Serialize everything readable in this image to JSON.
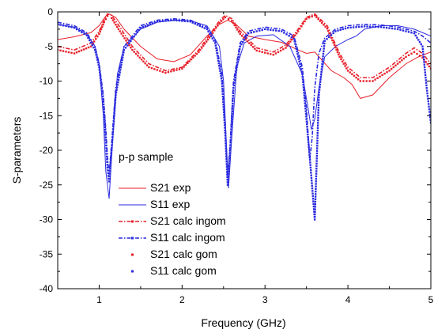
{
  "chart_data": {
    "type": "line",
    "title": "",
    "annotation": "p-p sample",
    "xlabel": "Frequency (GHz)",
    "ylabel": "S-parameters",
    "xlim": [
      0.5,
      5
    ],
    "ylim": [
      -40,
      0
    ],
    "x_ticks": [
      1,
      2,
      3,
      4,
      5
    ],
    "y_ticks": [
      0,
      -5,
      -10,
      -15,
      -20,
      -25,
      -30,
      -35,
      -40
    ],
    "grid": false,
    "legend_position": "center-left",
    "series": [
      {
        "name": "S21 exp",
        "color": "#e8202a",
        "style": "line",
        "x": [
          0.5,
          0.7,
          0.9,
          1.0,
          1.08,
          1.12,
          1.2,
          1.3,
          1.5,
          1.7,
          1.9,
          2.1,
          2.3,
          2.45,
          2.55,
          2.65,
          2.8,
          3.0,
          3.2,
          3.4,
          3.5,
          3.6,
          3.8,
          3.95,
          4.05,
          4.15,
          4.3,
          4.5,
          4.7,
          4.85,
          5.0
        ],
        "y": [
          -4.0,
          -3.6,
          -3.0,
          -2.0,
          -0.6,
          -0.3,
          -0.8,
          -2.5,
          -5.0,
          -6.8,
          -7.2,
          -6.2,
          -3.5,
          -1.8,
          -1.2,
          -1.8,
          -3.5,
          -4.0,
          -4.4,
          -5.5,
          -6.0,
          -5.8,
          -8.5,
          -9.5,
          -10.5,
          -12.5,
          -12.0,
          -9.5,
          -7.5,
          -6.5,
          -5.8
        ]
      },
      {
        "name": "S11 exp",
        "color": "#2a2ae0",
        "style": "line",
        "x": [
          0.5,
          0.7,
          0.85,
          0.95,
          1.0,
          1.05,
          1.08,
          1.12,
          1.16,
          1.22,
          1.3,
          1.5,
          1.7,
          1.9,
          2.1,
          2.3,
          2.45,
          2.5,
          2.53,
          2.56,
          2.6,
          2.66,
          2.75,
          2.9,
          3.1,
          3.3,
          3.45,
          3.52,
          3.56,
          3.6,
          3.65,
          3.72,
          3.85,
          4.0,
          4.1,
          4.2,
          4.4,
          4.6,
          4.8,
          5.0
        ],
        "y": [
          -1.8,
          -2.2,
          -3.2,
          -5.0,
          -7.5,
          -15.0,
          -23.0,
          -27.0,
          -19.0,
          -9.0,
          -5.0,
          -2.5,
          -1.5,
          -1.2,
          -1.3,
          -2.0,
          -5.0,
          -10.0,
          -18.0,
          -25.5,
          -18.0,
          -8.0,
          -4.5,
          -3.5,
          -3.3,
          -5.0,
          -9.0,
          -14.0,
          -17.0,
          -15.5,
          -11.0,
          -6.5,
          -5.0,
          -4.0,
          -3.5,
          -2.5,
          -2.0,
          -2.0,
          -2.5,
          -3.5
        ]
      },
      {
        "name": "S21 calc ingom",
        "color": "#e8202a",
        "style": "dash-dot",
        "x": [
          0.5,
          0.7,
          0.9,
          1.0,
          1.06,
          1.1,
          1.15,
          1.25,
          1.4,
          1.6,
          1.8,
          2.0,
          2.2,
          2.35,
          2.45,
          2.52,
          2.6,
          2.7,
          2.9,
          3.1,
          3.25,
          3.4,
          3.5,
          3.6,
          3.75,
          3.9,
          4.0,
          4.15,
          4.3,
          4.5,
          4.7,
          4.8,
          4.9,
          5.0
        ],
        "y": [
          -5.0,
          -5.5,
          -4.5,
          -2.8,
          -1.2,
          -0.3,
          -0.5,
          -2.2,
          -5.0,
          -7.5,
          -8.5,
          -8.0,
          -5.5,
          -3.0,
          -1.3,
          -0.5,
          -1.0,
          -2.8,
          -5.2,
          -5.8,
          -4.8,
          -2.5,
          -0.8,
          -0.3,
          -2.0,
          -6.0,
          -8.0,
          -9.5,
          -9.5,
          -8.0,
          -6.0,
          -5.2,
          -6.0,
          -7.5
        ]
      },
      {
        "name": "S11 calc ingom",
        "color": "#2a2ae0",
        "style": "dash-dot",
        "x": [
          0.5,
          0.7,
          0.85,
          0.95,
          1.0,
          1.05,
          1.08,
          1.1,
          1.12,
          1.15,
          1.2,
          1.3,
          1.5,
          1.7,
          1.9,
          2.1,
          2.3,
          2.4,
          2.48,
          2.52,
          2.55,
          2.58,
          2.62,
          2.7,
          2.8,
          3.0,
          3.2,
          3.35,
          3.45,
          3.5,
          3.54,
          3.57,
          3.6,
          3.65,
          3.72,
          3.85,
          4.0,
          4.2,
          4.4,
          4.6,
          4.8,
          4.9,
          5.0
        ],
        "y": [
          -1.5,
          -2.0,
          -3.0,
          -5.0,
          -7.5,
          -12.0,
          -17.0,
          -21.0,
          -23.5,
          -19.0,
          -11.0,
          -5.0,
          -2.0,
          -1.2,
          -1.0,
          -1.2,
          -2.2,
          -4.0,
          -9.0,
          -16.0,
          -24.0,
          -19.0,
          -10.0,
          -4.5,
          -2.8,
          -2.2,
          -2.5,
          -3.5,
          -8.0,
          -14.0,
          -21.5,
          -18.0,
          -11.0,
          -6.0,
          -3.8,
          -2.5,
          -2.0,
          -1.8,
          -1.9,
          -2.2,
          -2.8,
          -3.5,
          -4.5
        ]
      },
      {
        "name": "S21 calc gom",
        "color": "#e8202a",
        "style": "dots",
        "x": [
          0.5,
          0.7,
          0.9,
          1.0,
          1.06,
          1.1,
          1.15,
          1.25,
          1.4,
          1.6,
          1.8,
          2.0,
          2.2,
          2.35,
          2.45,
          2.52,
          2.6,
          2.7,
          2.9,
          3.1,
          3.25,
          3.4,
          3.5,
          3.6,
          3.75,
          3.9,
          4.0,
          4.15,
          4.3,
          4.5,
          4.7,
          4.8,
          4.9,
          5.0
        ],
        "y": [
          -5.5,
          -6.0,
          -5.0,
          -3.2,
          -1.5,
          -0.6,
          -0.9,
          -2.8,
          -5.5,
          -8.0,
          -8.8,
          -8.2,
          -5.8,
          -3.4,
          -1.6,
          -0.8,
          -1.3,
          -3.2,
          -5.6,
          -6.2,
          -5.2,
          -2.8,
          -1.0,
          -0.5,
          -2.4,
          -6.5,
          -8.5,
          -10.0,
          -10.0,
          -8.5,
          -6.5,
          -5.8,
          -6.6,
          -8.2
        ]
      },
      {
        "name": "S11 calc gom",
        "color": "#2a2ae0",
        "style": "dots",
        "x": [
          0.5,
          0.7,
          0.85,
          0.95,
          1.0,
          1.05,
          1.08,
          1.1,
          1.12,
          1.15,
          1.2,
          1.3,
          1.5,
          1.7,
          1.9,
          2.1,
          2.3,
          2.4,
          2.48,
          2.52,
          2.55,
          2.58,
          2.62,
          2.7,
          2.8,
          3.0,
          3.2,
          3.35,
          3.45,
          3.5,
          3.55,
          3.6,
          3.65,
          3.72,
          3.85,
          4.0,
          4.2,
          4.4,
          4.6,
          4.8,
          4.9,
          4.95,
          5.0
        ],
        "y": [
          -1.8,
          -2.3,
          -3.4,
          -5.5,
          -8.0,
          -13.0,
          -18.5,
          -22.5,
          -24.5,
          -20.0,
          -12.0,
          -5.5,
          -2.3,
          -1.4,
          -1.2,
          -1.4,
          -2.5,
          -4.5,
          -10.0,
          -17.5,
          -25.0,
          -20.0,
          -11.0,
          -5.0,
          -3.1,
          -2.5,
          -2.8,
          -3.9,
          -9.0,
          -15.5,
          -22.5,
          -30.0,
          -12.0,
          -4.2,
          -2.8,
          -2.3,
          -2.1,
          -2.2,
          -2.5,
          -3.1,
          -5.0,
          -11.0,
          -16.0
        ]
      }
    ]
  }
}
